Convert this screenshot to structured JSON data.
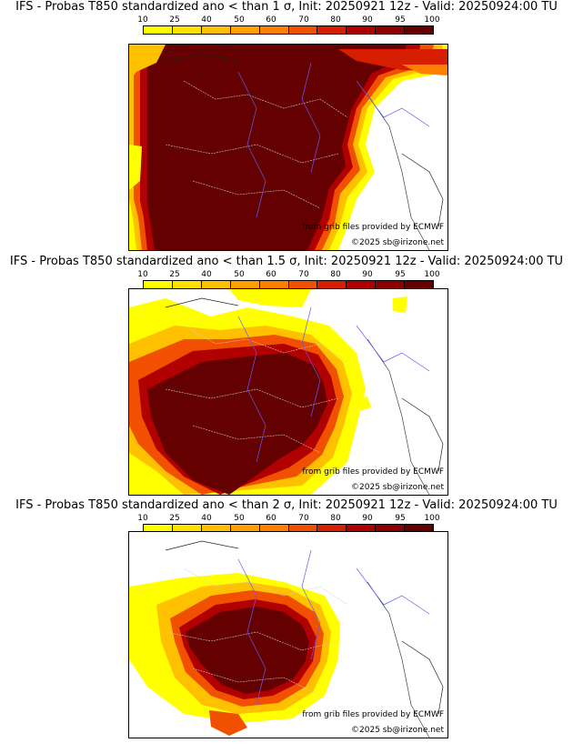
{
  "colorbar": {
    "labels": [
      "10",
      "25",
      "40",
      "50",
      "60",
      "70",
      "80",
      "90",
      "95",
      "100"
    ],
    "colors": [
      "#ffff00",
      "#ffe000",
      "#ffc000",
      "#ffa000",
      "#ff7f00",
      "#f05000",
      "#d81e00",
      "#b00000",
      "#8b0000",
      "#650000"
    ]
  },
  "panels": [
    {
      "title": "IFS - Probas T850  standardized ano < than 1 σ, Init: 20250921 12z - Valid: 20250924:00 TU",
      "credit": "from grib files provided by ECMWF",
      "copyright": "©2025 sb@irizone.net"
    },
    {
      "title": "IFS - Probas T850  standardized ano < than 1.5 σ, Init: 20250921 12z - Valid: 20250924:00 TU",
      "credit": "from grib files provided by ECMWF",
      "copyright": "©2025 sb@irizone.net"
    },
    {
      "title": "IFS - Probas T850  standardized ano < than 2 σ, Init: 20250921 12z - Valid: 20250924:00 TU",
      "credit": "from grib files provided by ECMWF",
      "copyright": "©2025 sb@irizone.net"
    }
  ]
}
